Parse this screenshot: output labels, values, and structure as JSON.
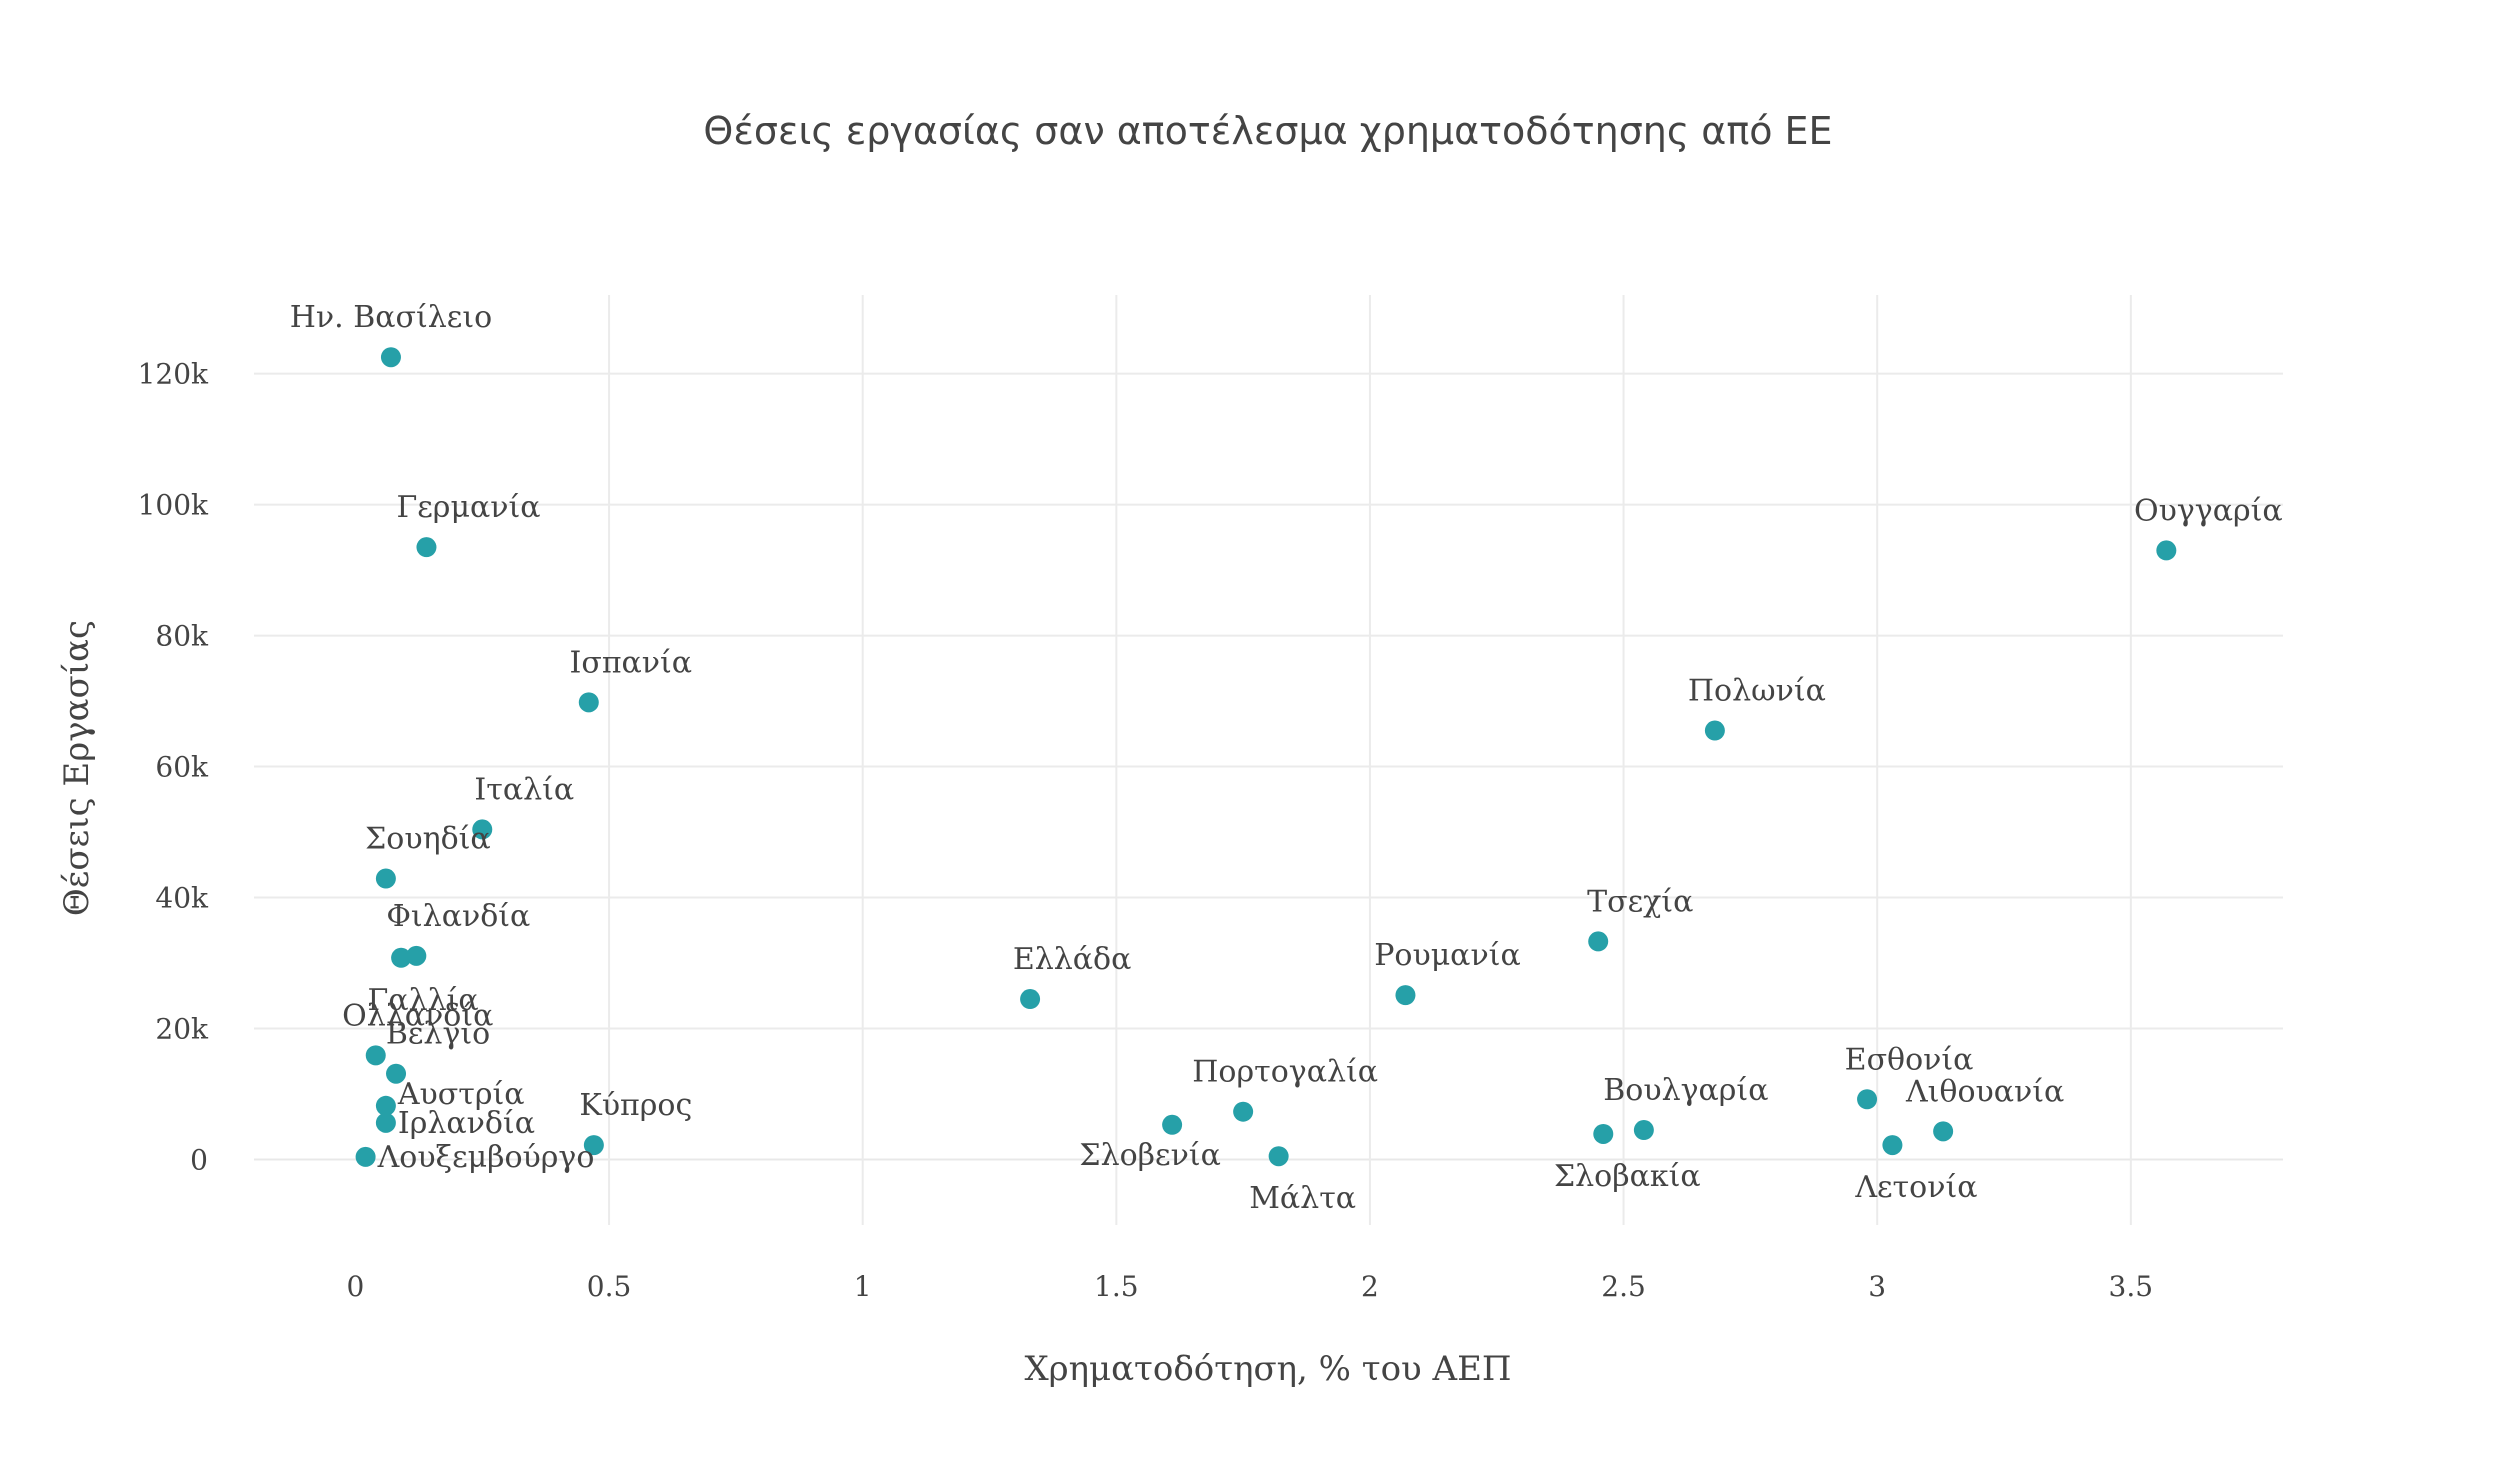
{
  "chart_data": {
    "type": "scatter",
    "title": "Θέσεις εργασίας σαν αποτέλεσμα χρηματοδότησης από ΕΕ",
    "xlabel": "Χρηματοδότηση, % του ΑΕΠ",
    "ylabel": "Θέσεις Εργασίας",
    "xlim": [
      -0.2,
      3.8
    ],
    "ylim": [
      -10000,
      132000
    ],
    "x_ticks": [
      0,
      0.5,
      1,
      1.5,
      2,
      2.5,
      3,
      3.5
    ],
    "x_tick_labels": [
      "0",
      "0.5",
      "1",
      "1.5",
      "2",
      "2.5",
      "3",
      "3.5"
    ],
    "y_ticks": [
      0,
      20000,
      40000,
      60000,
      80000,
      100000,
      120000
    ],
    "y_tick_labels": [
      "0",
      "20k",
      "40k",
      "60k",
      "80k",
      "100k",
      "120k"
    ],
    "grid": true,
    "marker_color": "#26a0a8",
    "points": [
      {
        "label": "Ην. Βασίλειο",
        "x": 0.07,
        "y": 122500,
        "label_pos": "above"
      },
      {
        "label": "Γερμανία",
        "x": 0.14,
        "y": 93500,
        "label_pos": "above-right"
      },
      {
        "label": "Ισπανία",
        "x": 0.46,
        "y": 69800,
        "label_pos": "above-right"
      },
      {
        "label": "Ιταλία",
        "x": 0.25,
        "y": 50400,
        "label_pos": "above-right"
      },
      {
        "label": "Σουηδία",
        "x": 0.06,
        "y": 42900,
        "label_pos": "above-right"
      },
      {
        "label": "Φιλανδία",
        "x": 0.12,
        "y": 31100,
        "label_pos": "above-right"
      },
      {
        "label": "Γαλλία",
        "x": 0.09,
        "y": 30800,
        "label_pos": "below"
      },
      {
        "label": "Ολλανδία",
        "x": 0.04,
        "y": 15900,
        "label_pos": "above-right"
      },
      {
        "label": "Βέλγιο",
        "x": 0.08,
        "y": 13100,
        "label_pos": "above-right"
      },
      {
        "label": "Αυστρία",
        "x": 0.06,
        "y": 8200,
        "label_pos": "right-up"
      },
      {
        "label": "Ιρλανδία",
        "x": 0.06,
        "y": 5600,
        "label_pos": "right"
      },
      {
        "label": "Λουξεμβούργο",
        "x": 0.02,
        "y": 400,
        "label_pos": "right"
      },
      {
        "label": "Κύπρος",
        "x": 0.47,
        "y": 2200,
        "label_pos": "above-right"
      },
      {
        "label": "Ελλάδα",
        "x": 1.33,
        "y": 24500,
        "label_pos": "above-right"
      },
      {
        "label": "Σλοβενία",
        "x": 1.61,
        "y": 5300,
        "label_pos": "below-left"
      },
      {
        "label": "Πορτογαλία",
        "x": 1.75,
        "y": 7300,
        "label_pos": "above-right"
      },
      {
        "label": "Μάλτα",
        "x": 1.82,
        "y": 500,
        "label_pos": "below-right"
      },
      {
        "label": "Ρουμανία",
        "x": 2.07,
        "y": 25100,
        "label_pos": "above-right"
      },
      {
        "label": "Τσεχία",
        "x": 2.45,
        "y": 33300,
        "label_pos": "above-right"
      },
      {
        "label": "Σλοβακία",
        "x": 2.46,
        "y": 3900,
        "label_pos": "below-right"
      },
      {
        "label": "Βουλγαρία",
        "x": 2.54,
        "y": 4500,
        "label_pos": "above-right"
      },
      {
        "label": "Πολωνία",
        "x": 2.68,
        "y": 65500,
        "label_pos": "above-right"
      },
      {
        "label": "Εσθονία",
        "x": 2.98,
        "y": 9200,
        "label_pos": "above-right"
      },
      {
        "label": "Λετονία",
        "x": 3.03,
        "y": 2200,
        "label_pos": "below-right"
      },
      {
        "label": "Λιθουανία",
        "x": 3.13,
        "y": 4300,
        "label_pos": "above-right"
      },
      {
        "label": "Ουγγαρία",
        "x": 3.57,
        "y": 93000,
        "label_pos": "above-right"
      }
    ]
  }
}
